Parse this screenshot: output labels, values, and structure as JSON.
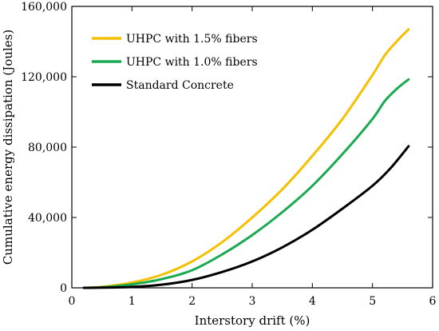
{
  "chart_data": {
    "type": "line",
    "title": "",
    "xlabel": "Interstory drift (%)",
    "ylabel": "Cumulative energy dissipation (Joules)",
    "xlim": [
      0,
      6
    ],
    "ylim": [
      0,
      160000
    ],
    "xticks": [
      0,
      1,
      2,
      3,
      4,
      5,
      6
    ],
    "yticks": [
      0,
      40000,
      80000,
      120000,
      160000
    ],
    "xtick_labels": [
      "0",
      "1",
      "2",
      "3",
      "4",
      "5",
      "6"
    ],
    "ytick_labels": [
      "0",
      "40,000",
      "80,000",
      "120,000",
      "160,000"
    ],
    "grid": false,
    "legend_position": "top-left",
    "series": [
      {
        "name": "UHPC with 1.5% fibers",
        "color": "#f5c000",
        "x": [
          0.2,
          0.5,
          1.0,
          1.5,
          2.0,
          2.5,
          3.0,
          3.5,
          4.0,
          4.5,
          5.0,
          5.2,
          5.4,
          5.6
        ],
        "y": [
          0,
          500,
          3000,
          7500,
          15000,
          26000,
          40000,
          56000,
          75000,
          96000,
          121000,
          132000,
          140000,
          147000
        ]
      },
      {
        "name": "UHPC with 1.0% fibers",
        "color": "#1aaa50",
        "x": [
          0.2,
          0.5,
          1.0,
          1.5,
          2.0,
          2.5,
          3.0,
          3.5,
          4.0,
          4.5,
          5.0,
          5.2,
          5.4,
          5.6
        ],
        "y": [
          0,
          300,
          2000,
          5000,
          10000,
          19000,
          30000,
          43000,
          58000,
          76000,
          96000,
          106000,
          113000,
          118500
        ]
      },
      {
        "name": "Standard Concrete",
        "color": "#000000",
        "x": [
          0.2,
          0.5,
          1.0,
          1.5,
          2.0,
          2.5,
          3.0,
          3.5,
          4.0,
          4.5,
          5.0,
          5.3,
          5.6
        ],
        "y": [
          0,
          100,
          500,
          1800,
          4500,
          9000,
          15000,
          23000,
          33000,
          45000,
          58000,
          68000,
          80500
        ]
      }
    ]
  }
}
